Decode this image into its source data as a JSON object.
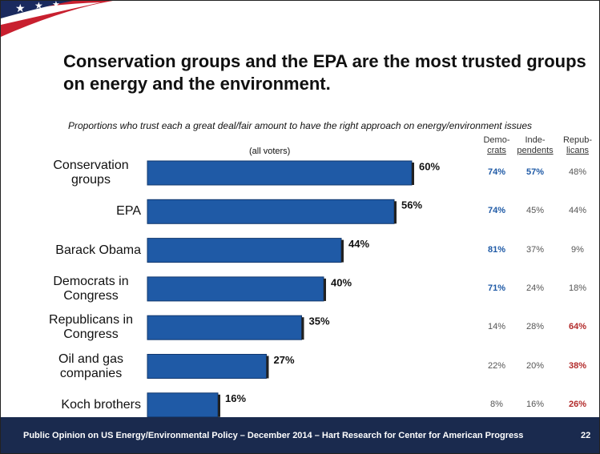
{
  "chart_data": {
    "type": "bar",
    "orientation": "horizontal",
    "title": "Conservation groups and the EPA are the most trusted groups on energy and the environment.",
    "subtitle": "Proportions who trust each a great deal/fair amount to have the right approach on energy/environment issues",
    "series_note": "(all voters)",
    "categories": [
      "Conservation groups",
      "EPA",
      "Barack Obama",
      "Democrats in Congress",
      "Republicans in Congress",
      "Oil and gas companies",
      "Koch brothers"
    ],
    "values": [
      60,
      56,
      44,
      40,
      35,
      27,
      16
    ],
    "value_labels": [
      "60%",
      "56%",
      "44%",
      "40%",
      "35%",
      "27%",
      "16%"
    ],
    "color": "#1f5aa6",
    "breakdown": [
      {
        "header": [
          "Demo-",
          "crats"
        ],
        "values": [
          74,
          74,
          81,
          71,
          14,
          22,
          8
        ],
        "value_labels": [
          "74%",
          "74%",
          "81%",
          "71%",
          "14%",
          "22%",
          "8%"
        ],
        "colors": [
          "#1f5aa6",
          "#1f5aa6",
          "#1f5aa6",
          "#1f5aa6",
          "#555555",
          "#555555",
          "#555555"
        ]
      },
      {
        "header": [
          "Inde-",
          "pendents"
        ],
        "values": [
          57,
          45,
          37,
          24,
          28,
          20,
          16
        ],
        "value_labels": [
          "57%",
          "45%",
          "37%",
          "24%",
          "28%",
          "20%",
          "16%"
        ],
        "colors": [
          "#1f5aa6",
          "#555555",
          "#555555",
          "#555555",
          "#555555",
          "#555555",
          "#555555"
        ]
      },
      {
        "header": [
          "Repub-",
          "licans"
        ],
        "values": [
          48,
          44,
          9,
          18,
          64,
          38,
          26
        ],
        "value_labels": [
          "48%",
          "44%",
          "9%",
          "18%",
          "64%",
          "38%",
          "26%"
        ],
        "colors": [
          "#555555",
          "#555555",
          "#555555",
          "#555555",
          "#b22a2a",
          "#b22a2a",
          "#b22a2a"
        ]
      }
    ],
    "footer": "Public Opinion on US Energy/Environmental Policy – December 2014 – Hart Research for Center for American Progress",
    "page_number": "22"
  }
}
